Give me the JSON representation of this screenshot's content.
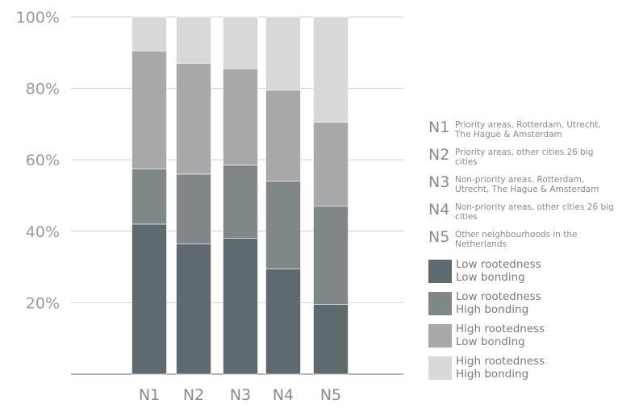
{
  "chart_data": {
    "type": "bar",
    "stacked": true,
    "categories": [
      "N1",
      "N2",
      "N3",
      "N4",
      "N5"
    ],
    "y_ticks": [
      "20%",
      "40%",
      "60%",
      "80%",
      "100%"
    ],
    "ylim": [
      0,
      100
    ],
    "series": [
      {
        "name": "Low rootedness\nLow bonding",
        "color": "#5f6a6e",
        "values": [
          42,
          36.5,
          38,
          29.5,
          19.5
        ]
      },
      {
        "name": "Low rootedness\nHigh bonding",
        "color": "#808789",
        "values": [
          15.5,
          19.5,
          20.5,
          24.5,
          27.5
        ]
      },
      {
        "name": "High rootedness\nLow bonding",
        "color": "#a6a8aa",
        "values": [
          33,
          31,
          27,
          25.5,
          23.5
        ]
      },
      {
        "name": "High rootedness\nHigh bonding",
        "color": "#d8d8d9",
        "values": [
          9.5,
          13,
          14.5,
          20.5,
          29.5
        ]
      }
    ],
    "grid": true,
    "legend_position": "right"
  },
  "legend": {
    "neighbourhoods": [
      {
        "code": "N1",
        "description": "Priority areas, Rotterdam, Utrecht, The Hague & Amsterdam"
      },
      {
        "code": "N2",
        "description": "Priority areas, other cities 26 big cities"
      },
      {
        "code": "N3",
        "description": "Non-priority areas, Rotterdam, Utrecht, The Hague & Amsterdam"
      },
      {
        "code": "N4",
        "description": "Non-priority areas, other cities 26 big cities"
      },
      {
        "code": "N5",
        "description": "Other neighbourhoods in the Netherlands"
      }
    ]
  }
}
